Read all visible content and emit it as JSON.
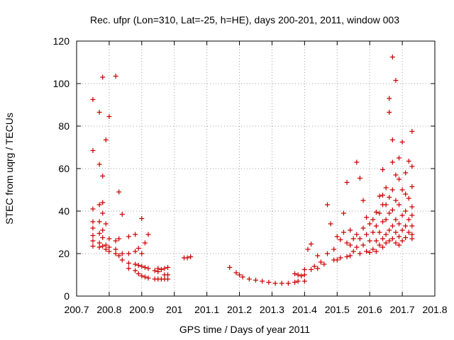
{
  "chart_data": {
    "type": "scatter",
    "title": "Rec. ufpr (Lon=310, Lat=-25, h=HE), days 200-201, 2011, window 003",
    "xlabel": "GPS time / Days of year 2011",
    "ylabel": "STEC from uqrg / TECUs",
    "xlim": [
      200.7,
      201.8
    ],
    "ylim": [
      0,
      120
    ],
    "xticks": [
      "200.7",
      "200.8",
      "200.9",
      "201",
      "201.1",
      "201.2",
      "201.3",
      "201.4",
      "201.5",
      "201.6",
      "201.7",
      "201.8"
    ],
    "yticks": [
      "0",
      "20",
      "40",
      "60",
      "80",
      "100",
      "120"
    ],
    "grid": true,
    "marker": "+",
    "color": "#cc0000",
    "series": [
      {
        "name": "STEC",
        "points": [
          [
            200.75,
            92.5
          ],
          [
            200.75,
            68.5
          ],
          [
            200.75,
            41
          ],
          [
            200.75,
            35
          ],
          [
            200.75,
            32
          ],
          [
            200.75,
            28.5
          ],
          [
            200.75,
            26
          ],
          [
            200.75,
            23.5
          ],
          [
            200.77,
            86.5
          ],
          [
            200.77,
            62
          ],
          [
            200.77,
            43
          ],
          [
            200.77,
            35
          ],
          [
            200.77,
            29.5
          ],
          [
            200.77,
            25
          ],
          [
            200.77,
            23
          ],
          [
            200.78,
            103
          ],
          [
            200.78,
            56.5
          ],
          [
            200.78,
            44
          ],
          [
            200.78,
            39
          ],
          [
            200.78,
            31
          ],
          [
            200.78,
            27.5
          ],
          [
            200.78,
            23.5
          ],
          [
            200.79,
            73.5
          ],
          [
            200.79,
            34
          ],
          [
            200.79,
            24
          ],
          [
            200.79,
            22
          ],
          [
            200.8,
            84.5
          ],
          [
            200.8,
            27
          ],
          [
            200.8,
            23
          ],
          [
            200.8,
            21
          ],
          [
            200.82,
            103.5
          ],
          [
            200.82,
            26
          ],
          [
            200.82,
            22
          ],
          [
            200.82,
            20
          ],
          [
            200.83,
            49
          ],
          [
            200.83,
            27
          ],
          [
            200.83,
            19
          ],
          [
            200.84,
            38.5
          ],
          [
            200.84,
            20
          ],
          [
            200.84,
            17
          ],
          [
            200.86,
            28
          ],
          [
            200.86,
            20
          ],
          [
            200.86,
            15.5
          ],
          [
            200.86,
            13
          ],
          [
            200.88,
            29
          ],
          [
            200.88,
            21
          ],
          [
            200.88,
            15
          ],
          [
            200.88,
            12
          ],
          [
            200.89,
            22.5
          ],
          [
            200.89,
            14.5
          ],
          [
            200.89,
            10.5
          ],
          [
            200.9,
            36.5
          ],
          [
            200.9,
            20
          ],
          [
            200.9,
            14
          ],
          [
            200.9,
            9.5
          ],
          [
            200.91,
            25
          ],
          [
            200.91,
            13.5
          ],
          [
            200.91,
            9
          ],
          [
            200.92,
            29
          ],
          [
            200.92,
            13
          ],
          [
            200.92,
            8.5
          ],
          [
            200.94,
            12
          ],
          [
            200.94,
            8
          ],
          [
            200.95,
            13
          ],
          [
            200.95,
            11.5
          ],
          [
            200.95,
            8
          ],
          [
            200.96,
            12.5
          ],
          [
            200.96,
            8
          ],
          [
            200.97,
            13
          ],
          [
            200.97,
            10
          ],
          [
            200.97,
            8
          ],
          [
            200.98,
            13.5
          ],
          [
            200.98,
            10
          ],
          [
            200.98,
            8
          ],
          [
            201.03,
            18
          ],
          [
            201.04,
            18
          ],
          [
            201.05,
            18.5
          ],
          [
            201.17,
            13.5
          ],
          [
            201.19,
            11
          ],
          [
            201.2,
            10
          ],
          [
            201.21,
            9
          ],
          [
            201.23,
            8
          ],
          [
            201.25,
            7.5
          ],
          [
            201.27,
            7
          ],
          [
            201.29,
            6.5
          ],
          [
            201.31,
            6
          ],
          [
            201.33,
            6
          ],
          [
            201.35,
            6
          ],
          [
            201.37,
            6.5
          ],
          [
            201.38,
            7
          ],
          [
            201.4,
            7
          ],
          [
            201.37,
            10.5
          ],
          [
            201.38,
            10
          ],
          [
            201.39,
            9.5
          ],
          [
            201.4,
            10
          ],
          [
            201.4,
            12.5
          ],
          [
            201.41,
            22
          ],
          [
            201.42,
            12.5
          ],
          [
            201.42,
            24.5
          ],
          [
            201.43,
            14
          ],
          [
            201.44,
            13
          ],
          [
            201.44,
            19
          ],
          [
            201.45,
            16
          ],
          [
            201.46,
            15
          ],
          [
            201.47,
            43
          ],
          [
            201.47,
            20
          ],
          [
            201.48,
            34
          ],
          [
            201.49,
            17
          ],
          [
            201.49,
            22
          ],
          [
            201.5,
            28
          ],
          [
            201.5,
            17
          ],
          [
            201.51,
            26.5
          ],
          [
            201.51,
            18
          ],
          [
            201.52,
            39
          ],
          [
            201.52,
            30
          ],
          [
            201.53,
            53.5
          ],
          [
            201.53,
            25
          ],
          [
            201.53,
            18.5
          ],
          [
            201.54,
            31
          ],
          [
            201.54,
            24
          ],
          [
            201.54,
            19
          ],
          [
            201.55,
            27
          ],
          [
            201.55,
            21
          ],
          [
            201.56,
            63
          ],
          [
            201.56,
            29
          ],
          [
            201.56,
            23
          ],
          [
            201.57,
            55.5
          ],
          [
            201.57,
            27
          ],
          [
            201.57,
            20
          ],
          [
            201.58,
            45
          ],
          [
            201.58,
            32
          ],
          [
            201.58,
            24
          ],
          [
            201.59,
            37
          ],
          [
            201.59,
            29
          ],
          [
            201.59,
            21
          ],
          [
            201.6,
            34
          ],
          [
            201.6,
            26
          ],
          [
            201.6,
            20.5
          ],
          [
            201.61,
            36
          ],
          [
            201.61,
            30
          ],
          [
            201.61,
            22
          ],
          [
            201.62,
            39.5
          ],
          [
            201.62,
            33
          ],
          [
            201.62,
            26
          ],
          [
            201.62,
            21
          ],
          [
            201.63,
            47
          ],
          [
            201.63,
            39
          ],
          [
            201.63,
            30
          ],
          [
            201.63,
            24
          ],
          [
            201.64,
            59.5
          ],
          [
            201.64,
            47.5
          ],
          [
            201.64,
            43
          ],
          [
            201.64,
            35
          ],
          [
            201.64,
            27
          ],
          [
            201.64,
            23
          ],
          [
            201.65,
            51
          ],
          [
            201.65,
            43
          ],
          [
            201.65,
            36
          ],
          [
            201.65,
            29
          ],
          [
            201.65,
            25
          ],
          [
            201.66,
            93
          ],
          [
            201.66,
            86.5
          ],
          [
            201.66,
            46.5
          ],
          [
            201.66,
            39
          ],
          [
            201.66,
            31
          ],
          [
            201.66,
            26
          ],
          [
            201.67,
            112.5
          ],
          [
            201.67,
            73.5
          ],
          [
            201.67,
            63
          ],
          [
            201.67,
            50
          ],
          [
            201.67,
            40.5
          ],
          [
            201.67,
            33
          ],
          [
            201.67,
            27
          ],
          [
            201.68,
            101.5
          ],
          [
            201.68,
            57
          ],
          [
            201.68,
            45
          ],
          [
            201.68,
            36
          ],
          [
            201.68,
            30
          ],
          [
            201.68,
            25
          ],
          [
            201.69,
            65
          ],
          [
            201.69,
            55
          ],
          [
            201.69,
            43
          ],
          [
            201.69,
            34
          ],
          [
            201.69,
            28
          ],
          [
            201.69,
            24
          ],
          [
            201.7,
            72.5
          ],
          [
            201.7,
            50
          ],
          [
            201.7,
            38
          ],
          [
            201.7,
            31
          ],
          [
            201.7,
            26
          ],
          [
            201.71,
            58
          ],
          [
            201.71,
            48
          ],
          [
            201.71,
            40
          ],
          [
            201.71,
            33
          ],
          [
            201.71,
            27.5
          ],
          [
            201.72,
            63.5
          ],
          [
            201.72,
            46
          ],
          [
            201.72,
            36
          ],
          [
            201.72,
            30
          ],
          [
            201.73,
            77.5
          ],
          [
            201.73,
            61
          ],
          [
            201.73,
            51.5
          ],
          [
            201.73,
            42
          ],
          [
            201.73,
            38
          ],
          [
            201.73,
            33
          ],
          [
            201.73,
            29
          ],
          [
            201.73,
            27
          ]
        ]
      }
    ]
  }
}
